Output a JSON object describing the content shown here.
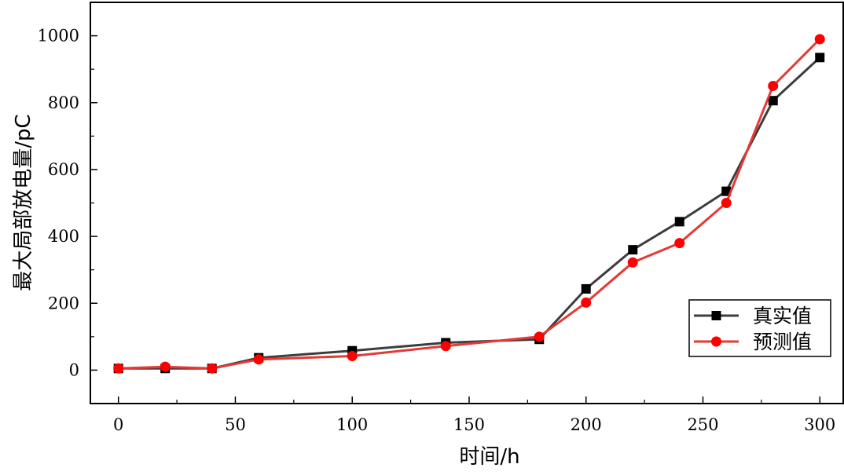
{
  "chart_data": {
    "type": "line",
    "title": "",
    "xlabel": "时间/h",
    "ylabel": "最大局部放电量/pC",
    "xlim": [
      -12,
      310
    ],
    "ylim": [
      -100,
      1100
    ],
    "xticks": [
      0,
      50,
      100,
      150,
      200,
      250,
      300
    ],
    "yticks": [
      0,
      200,
      400,
      600,
      800,
      1000
    ],
    "grid": false,
    "legend_position": "bottom-right",
    "x": [
      0,
      20,
      40,
      60,
      100,
      140,
      180,
      200,
      220,
      240,
      260,
      280,
      300
    ],
    "series": [
      {
        "name": "真实值",
        "marker": "square",
        "color": "#3d3d3d",
        "marker_color": "#000000",
        "values": [
          5,
          5,
          5,
          37,
          58,
          82,
          92,
          243,
          360,
          444,
          535,
          806,
          935
        ]
      },
      {
        "name": "预测值",
        "marker": "circle",
        "color": "#e53935",
        "marker_color": "#ff0000",
        "values": [
          5,
          10,
          5,
          32,
          42,
          72,
          100,
          202,
          322,
          380,
          500,
          850,
          990
        ]
      }
    ]
  }
}
